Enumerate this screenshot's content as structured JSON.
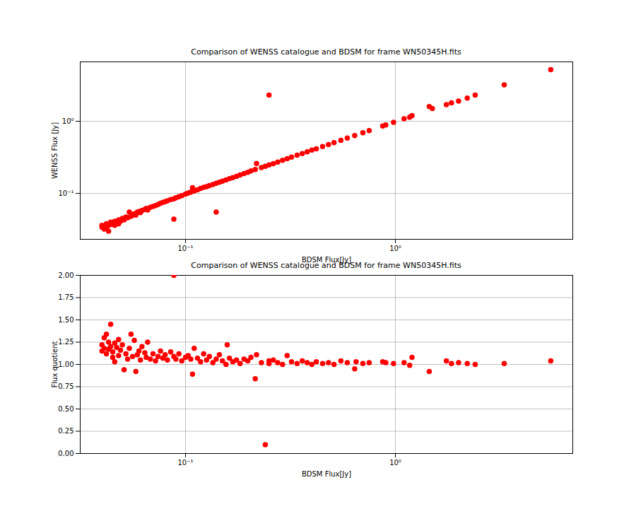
{
  "chart_data": [
    {
      "type": "scatter",
      "title": "Comparison of WENSS catalogue and BDSM for frame WN50345H.fits",
      "x_label": "BDSM Flux[Jy]",
      "y_label": "WENSS Flux [Jy]",
      "log": true,
      "grid": true,
      "color": "#ff0000",
      "marker": "o",
      "xlim": [
        0.0315,
        7.0
      ],
      "ylim": [
        0.0231,
        6.66
      ],
      "xticks": [
        {
          "value": 0.1,
          "label": "10⁻¹"
        },
        {
          "value": 1,
          "label": "10⁰"
        }
      ],
      "yticks": [
        {
          "value": 0.1,
          "label": "10⁻¹"
        },
        {
          "value": 1,
          "label": "10⁰"
        }
      ],
      "x": [
        0.04,
        0.04,
        0.041,
        0.041,
        0.042,
        0.042,
        0.043,
        0.043,
        0.044,
        0.044,
        0.045,
        0.046,
        0.046,
        0.047,
        0.048,
        0.048,
        0.049,
        0.05,
        0.051,
        0.052,
        0.053,
        0.054,
        0.055,
        0.056,
        0.057,
        0.058,
        0.059,
        0.06,
        0.061,
        0.062,
        0.064,
        0.065,
        0.066,
        0.068,
        0.07,
        0.072,
        0.074,
        0.076,
        0.078,
        0.08,
        0.082,
        0.085,
        0.088,
        0.088,
        0.09,
        0.093,
        0.096,
        0.1,
        0.103,
        0.106,
        0.108,
        0.11,
        0.114,
        0.118,
        0.122,
        0.126,
        0.13,
        0.135,
        0.14,
        0.14,
        0.145,
        0.15,
        0.156,
        0.162,
        0.168,
        0.175,
        0.182,
        0.19,
        0.198,
        0.205,
        0.215,
        0.218,
        0.23,
        0.24,
        0.25,
        0.25,
        0.262,
        0.275,
        0.29,
        0.305,
        0.32,
        0.34,
        0.36,
        0.38,
        0.4,
        0.42,
        0.45,
        0.48,
        0.51,
        0.55,
        0.59,
        0.64,
        0.7,
        0.75,
        0.87,
        0.9,
        0.98,
        1.1,
        1.17,
        1.2,
        1.45,
        1.5,
        1.75,
        1.85,
        2.0,
        2.2,
        2.4,
        3.3,
        5.5
      ],
      "values": [
        0.034,
        0.036,
        0.032,
        0.035,
        0.033,
        0.038,
        0.036,
        0.03,
        0.04,
        0.037,
        0.039,
        0.036,
        0.041,
        0.04,
        0.038,
        0.043,
        0.041,
        0.045,
        0.043,
        0.047,
        0.046,
        0.055,
        0.048,
        0.05,
        0.052,
        0.05,
        0.055,
        0.056,
        0.054,
        0.058,
        0.06,
        0.062,
        0.059,
        0.064,
        0.066,
        0.068,
        0.07,
        0.073,
        0.075,
        0.077,
        0.079,
        0.082,
        0.044,
        0.084,
        0.087,
        0.09,
        0.093,
        0.098,
        0.101,
        0.104,
        0.12,
        0.108,
        0.112,
        0.117,
        0.121,
        0.124,
        0.128,
        0.133,
        0.055,
        0.138,
        0.143,
        0.148,
        0.154,
        0.16,
        0.165,
        0.172,
        0.18,
        0.188,
        0.196,
        0.205,
        0.215,
        0.26,
        0.228,
        0.238,
        2.3,
        0.248,
        0.258,
        0.272,
        0.288,
        0.303,
        0.318,
        0.338,
        0.357,
        0.378,
        0.398,
        0.415,
        0.447,
        0.476,
        0.505,
        0.545,
        0.585,
        0.635,
        0.695,
        0.74,
        0.86,
        0.89,
        0.97,
        1.08,
        1.14,
        1.2,
        1.6,
        1.5,
        1.7,
        1.8,
        1.9,
        2.1,
        2.3,
        3.2,
        5.2
      ]
    },
    {
      "type": "scatter",
      "title": "Comparison of WENSS catalogue and BDSM for frame WN50345H.fits",
      "x_label": "BDSM Flux[Jy]",
      "y_label": "Flux quotient",
      "log": "x",
      "grid": true,
      "color": "#ff0000",
      "marker": "o",
      "xlim": [
        0.0315,
        7.0
      ],
      "ylim": [
        0,
        2
      ],
      "xticks": [
        {
          "value": 0.1,
          "label": "10⁻¹"
        },
        {
          "value": 1,
          "label": "10⁰"
        }
      ],
      "yticks": [
        {
          "value": 0,
          "label": "0.00"
        },
        {
          "value": 0.25,
          "label": "0.25"
        },
        {
          "value": 0.5,
          "label": "0.50"
        },
        {
          "value": 0.75,
          "label": "0.75"
        },
        {
          "value": 1,
          "label": "1.00"
        },
        {
          "value": 1.25,
          "label": "1.25"
        },
        {
          "value": 1.5,
          "label": "1.50"
        },
        {
          "value": 1.75,
          "label": "1.75"
        },
        {
          "value": 2,
          "label": "2.00"
        }
      ],
      "x": [
        0.04,
        0.04,
        0.041,
        0.041,
        0.042,
        0.042,
        0.043,
        0.043,
        0.044,
        0.044,
        0.045,
        0.045,
        0.046,
        0.046,
        0.047,
        0.048,
        0.048,
        0.049,
        0.05,
        0.051,
        0.052,
        0.053,
        0.054,
        0.055,
        0.056,
        0.057,
        0.058,
        0.059,
        0.06,
        0.061,
        0.062,
        0.064,
        0.065,
        0.066,
        0.068,
        0.07,
        0.072,
        0.074,
        0.076,
        0.078,
        0.08,
        0.082,
        0.085,
        0.088,
        0.088,
        0.09,
        0.093,
        0.096,
        0.1,
        0.103,
        0.106,
        0.108,
        0.11,
        0.114,
        0.118,
        0.122,
        0.126,
        0.13,
        0.135,
        0.14,
        0.145,
        0.15,
        0.156,
        0.158,
        0.162,
        0.168,
        0.175,
        0.182,
        0.19,
        0.198,
        0.205,
        0.215,
        0.218,
        0.23,
        0.24,
        0.25,
        0.25,
        0.262,
        0.275,
        0.29,
        0.305,
        0.32,
        0.34,
        0.36,
        0.38,
        0.4,
        0.42,
        0.45,
        0.48,
        0.51,
        0.55,
        0.59,
        0.64,
        0.65,
        0.7,
        0.75,
        0.87,
        0.9,
        0.98,
        1.1,
        1.17,
        1.2,
        1.45,
        1.75,
        1.85,
        2.0,
        2.2,
        2.4,
        3.3,
        5.5
      ],
      "values": [
        1.15,
        1.22,
        1.3,
        1.18,
        1.34,
        1.12,
        1.25,
        1.17,
        1.45,
        1.2,
        1.08,
        1.14,
        1.24,
        1.03,
        1.19,
        1.28,
        1.1,
        1.16,
        1.22,
        0.94,
        1.12,
        1.06,
        1.18,
        1.34,
        1.09,
        1.27,
        0.92,
        1.11,
        1.15,
        1.05,
        1.2,
        1.13,
        1.08,
        1.25,
        1.06,
        1.12,
        1.04,
        1.09,
        1.15,
        1.07,
        1.11,
        1.05,
        1.14,
        2.0,
        1.09,
        1.06,
        1.12,
        1.04,
        1.08,
        1.1,
        1.06,
        0.89,
        1.18,
        1.07,
        1.03,
        1.12,
        1.05,
        1.09,
        1.02,
        1.06,
        1.11,
        1.04,
        1.0,
        1.22,
        1.07,
        1.03,
        1.05,
        1.01,
        1.06,
        1.04,
        1.08,
        0.84,
        1.11,
        1.02,
        0.1,
        1.04,
        1.01,
        1.05,
        1.02,
        1.0,
        1.1,
        1.03,
        1.01,
        1.04,
        1.02,
        1.0,
        1.03,
        1.01,
        1.02,
        1.0,
        1.04,
        1.02,
        0.95,
        1.03,
        1.01,
        1.02,
        1.03,
        1.02,
        1.01,
        1.02,
        0.99,
        1.08,
        0.92,
        1.04,
        1.01,
        1.02,
        1.01,
        1.0,
        1.01,
        1.04
      ]
    }
  ]
}
